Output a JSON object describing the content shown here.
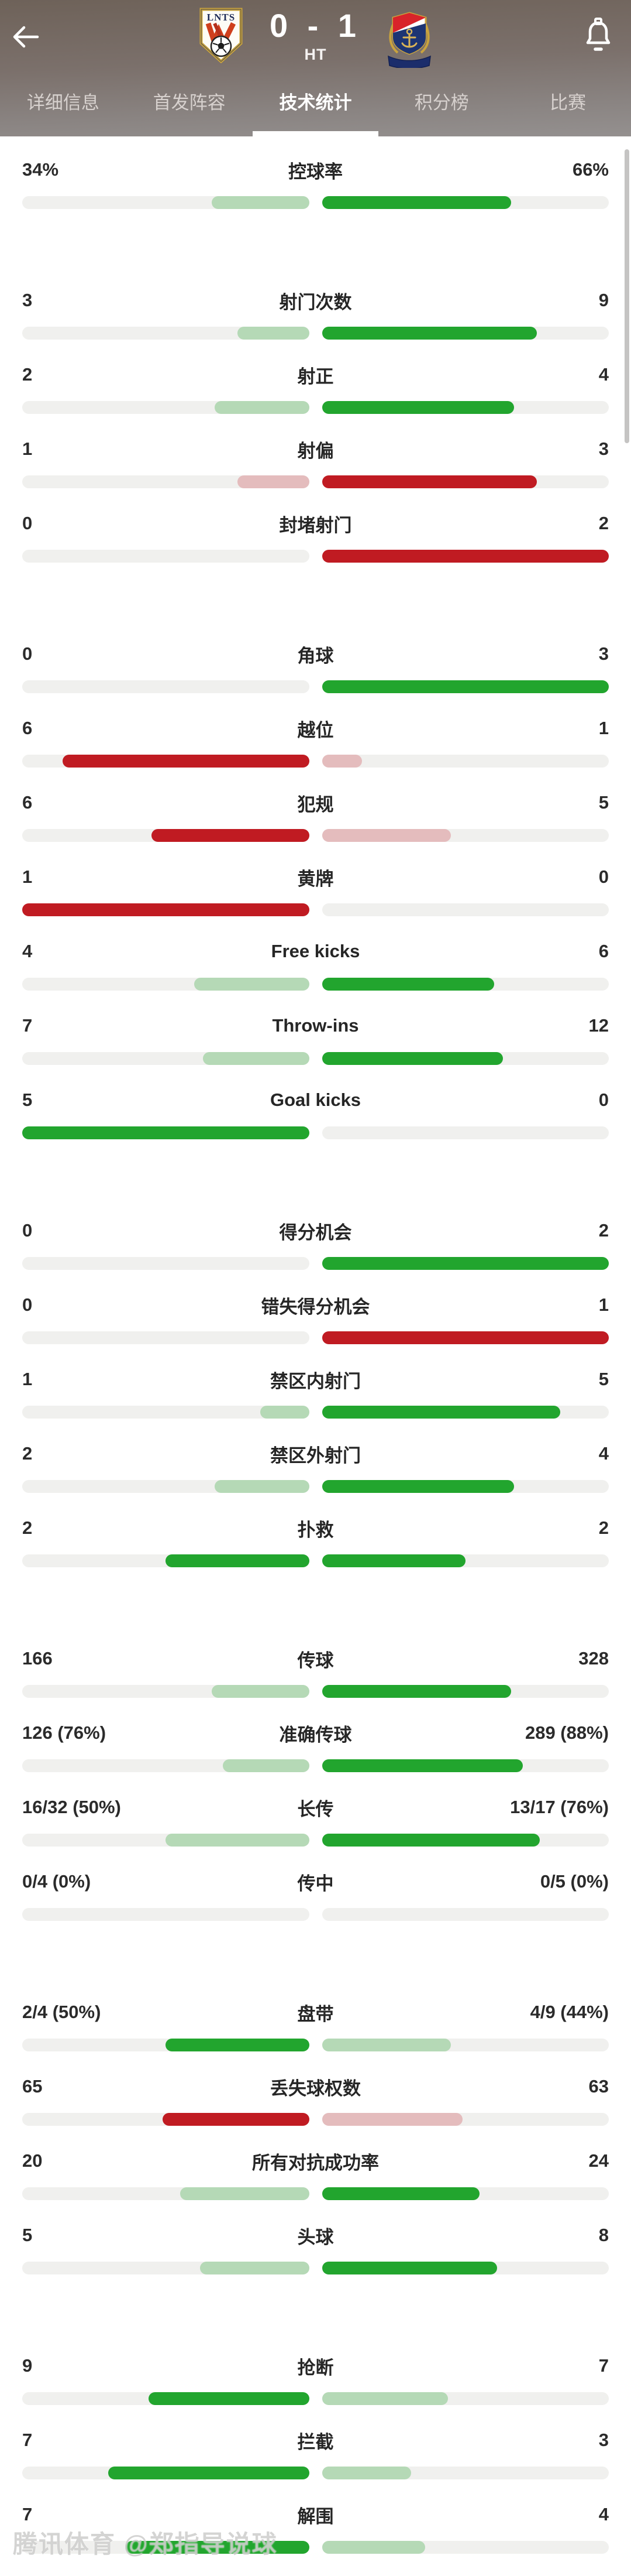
{
  "header": {
    "score": "0 - 1",
    "period": "HT",
    "home_logo_text": "LNTS",
    "home_team_logo": "shandong-taishan-crest",
    "away_team_logo": "shanghai-shenhua-crest"
  },
  "tabs": [
    {
      "label": "详细信息",
      "active": false
    },
    {
      "label": "首发阵容",
      "active": false
    },
    {
      "label": "技术统计",
      "active": true
    },
    {
      "label": "积分榜",
      "active": false
    },
    {
      "label": "比赛",
      "active": false
    }
  ],
  "palette": {
    "dark_green": "#22a52e",
    "light_green": "#b5d9b6",
    "dark_red": "#c01b22",
    "light_red": "#e4bcbd",
    "track": "#f0f0ee",
    "tab_indicator": "#ffffff"
  },
  "sections": [
    {
      "rows": [
        {
          "label": "控球率",
          "left": {
            "value": "34%",
            "fill": 34,
            "style": "light_green"
          },
          "right": {
            "value": "66%",
            "fill": 66,
            "style": "dark_green"
          }
        }
      ]
    },
    {
      "rows": [
        {
          "label": "射门次数",
          "left": {
            "value": "3",
            "fill": 25,
            "style": "light_green"
          },
          "right": {
            "value": "9",
            "fill": 75,
            "style": "dark_green"
          }
        },
        {
          "label": "射正",
          "left": {
            "value": "2",
            "fill": 33,
            "style": "light_green"
          },
          "right": {
            "value": "4",
            "fill": 67,
            "style": "dark_green"
          }
        },
        {
          "label": "射偏",
          "left": {
            "value": "1",
            "fill": 25,
            "style": "light_red"
          },
          "right": {
            "value": "3",
            "fill": 75,
            "style": "dark_red"
          }
        },
        {
          "label": "封堵射门",
          "left": {
            "value": "0",
            "fill": 0,
            "style": "none"
          },
          "right": {
            "value": "2",
            "fill": 100,
            "style": "dark_red"
          }
        }
      ]
    },
    {
      "rows": [
        {
          "label": "角球",
          "left": {
            "value": "0",
            "fill": 0,
            "style": "none"
          },
          "right": {
            "value": "3",
            "fill": 100,
            "style": "dark_green"
          }
        },
        {
          "label": "越位",
          "left": {
            "value": "6",
            "fill": 86,
            "style": "dark_red"
          },
          "right": {
            "value": "1",
            "fill": 14,
            "style": "light_red"
          }
        },
        {
          "label": "犯规",
          "left": {
            "value": "6",
            "fill": 55,
            "style": "dark_red"
          },
          "right": {
            "value": "5",
            "fill": 45,
            "style": "light_red"
          }
        },
        {
          "label": "黄牌",
          "left": {
            "value": "1",
            "fill": 100,
            "style": "dark_red"
          },
          "right": {
            "value": "0",
            "fill": 0,
            "style": "none"
          }
        },
        {
          "label": "Free kicks",
          "left": {
            "value": "4",
            "fill": 40,
            "style": "light_green"
          },
          "right": {
            "value": "6",
            "fill": 60,
            "style": "dark_green"
          }
        },
        {
          "label": "Throw-ins",
          "left": {
            "value": "7",
            "fill": 37,
            "style": "light_green"
          },
          "right": {
            "value": "12",
            "fill": 63,
            "style": "dark_green"
          }
        },
        {
          "label": "Goal kicks",
          "left": {
            "value": "5",
            "fill": 100,
            "style": "dark_green"
          },
          "right": {
            "value": "0",
            "fill": 0,
            "style": "none"
          }
        }
      ]
    },
    {
      "rows": [
        {
          "label": "得分机会",
          "left": {
            "value": "0",
            "fill": 0,
            "style": "none"
          },
          "right": {
            "value": "2",
            "fill": 100,
            "style": "dark_green"
          }
        },
        {
          "label": "错失得分机会",
          "left": {
            "value": "0",
            "fill": 0,
            "style": "none"
          },
          "right": {
            "value": "1",
            "fill": 100,
            "style": "dark_red"
          }
        },
        {
          "label": "禁区内射门",
          "left": {
            "value": "1",
            "fill": 17,
            "style": "light_green"
          },
          "right": {
            "value": "5",
            "fill": 83,
            "style": "dark_green"
          }
        },
        {
          "label": "禁区外射门",
          "left": {
            "value": "2",
            "fill": 33,
            "style": "light_green"
          },
          "right": {
            "value": "4",
            "fill": 67,
            "style": "dark_green"
          }
        },
        {
          "label": "扑救",
          "left": {
            "value": "2",
            "fill": 50,
            "style": "dark_green"
          },
          "right": {
            "value": "2",
            "fill": 50,
            "style": "dark_green"
          }
        }
      ]
    },
    {
      "rows": [
        {
          "label": "传球",
          "left": {
            "value": "166",
            "fill": 34,
            "style": "light_green"
          },
          "right": {
            "value": "328",
            "fill": 66,
            "style": "dark_green"
          }
        },
        {
          "label": "准确传球",
          "left": {
            "value": "126 (76%)",
            "fill": 30,
            "style": "light_green"
          },
          "right": {
            "value": "289 (88%)",
            "fill": 70,
            "style": "dark_green"
          }
        },
        {
          "label": "长传",
          "left": {
            "value": "16/32 (50%)",
            "fill": 50,
            "style": "light_green"
          },
          "right": {
            "value": "13/17 (76%)",
            "fill": 76,
            "style": "dark_green"
          }
        },
        {
          "label": "传中",
          "left": {
            "value": "0/4 (0%)",
            "fill": 0,
            "style": "none"
          },
          "right": {
            "value": "0/5 (0%)",
            "fill": 0,
            "style": "none"
          }
        }
      ]
    },
    {
      "rows": [
        {
          "label": "盘带",
          "left": {
            "value": "2/4 (50%)",
            "fill": 50,
            "style": "dark_green"
          },
          "right": {
            "value": "4/9 (44%)",
            "fill": 45,
            "style": "light_green"
          }
        },
        {
          "label": "丢失球权数",
          "left": {
            "value": "65",
            "fill": 51,
            "style": "dark_red"
          },
          "right": {
            "value": "63",
            "fill": 49,
            "style": "light_red"
          }
        },
        {
          "label": "所有对抗成功率",
          "left": {
            "value": "20",
            "fill": 45,
            "style": "light_green"
          },
          "right": {
            "value": "24",
            "fill": 55,
            "style": "dark_green"
          }
        },
        {
          "label": "头球",
          "left": {
            "value": "5",
            "fill": 38,
            "style": "light_green"
          },
          "right": {
            "value": "8",
            "fill": 61,
            "style": "dark_green"
          }
        }
      ]
    },
    {
      "rows": [
        {
          "label": "抢断",
          "left": {
            "value": "9",
            "fill": 56,
            "style": "dark_green"
          },
          "right": {
            "value": "7",
            "fill": 44,
            "style": "light_green"
          }
        },
        {
          "label": "拦截",
          "left": {
            "value": "7",
            "fill": 70,
            "style": "dark_green"
          },
          "right": {
            "value": "3",
            "fill": 31,
            "style": "light_green"
          }
        },
        {
          "label": "解围",
          "left": {
            "value": "7",
            "fill": 64,
            "style": "dark_green"
          },
          "right": {
            "value": "4",
            "fill": 36,
            "style": "light_green"
          }
        }
      ]
    }
  ],
  "watermark": "腾讯体育 @郑指导说球"
}
